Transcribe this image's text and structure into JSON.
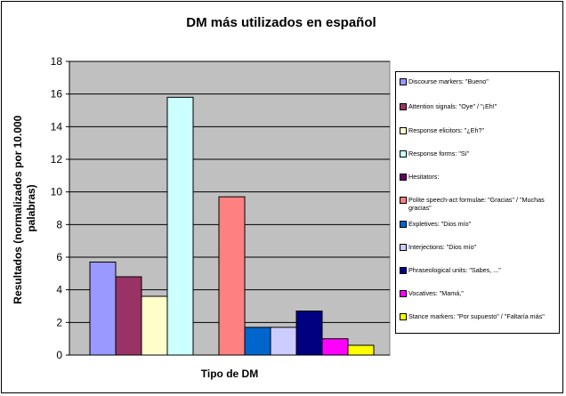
{
  "chart_data": {
    "type": "bar",
    "title": "DM más utilizados en español",
    "xlabel": "Tipo de DM",
    "ylabel": "Resultados (normalizados por 10.000 palabras)",
    "ylim": [
      0,
      18
    ],
    "yticks": [
      0,
      2,
      4,
      6,
      8,
      10,
      12,
      14,
      16,
      18
    ],
    "grid": true,
    "legend_position": "right",
    "categories": [
      ""
    ],
    "series": [
      {
        "name": "Discourse markers: \"Bueno\"",
        "values": [
          5.7
        ],
        "color": "#9999ff"
      },
      {
        "name": "Attention signals: \"Oye\" / \"¡Eh!\"",
        "values": [
          4.8
        ],
        "color": "#993366"
      },
      {
        "name": "Response elicitors: \"¿Eh?\"",
        "values": [
          3.6
        ],
        "color": "#ffffcc"
      },
      {
        "name": "Response forms: \"Sí\"",
        "values": [
          15.8
        ],
        "color": "#ccffff"
      },
      {
        "name": "Hesitators:",
        "values": [
          0
        ],
        "color": "#660066"
      },
      {
        "name": "Polite speech-act formulae: \"Gracias\" / \"Muchas gracias\"",
        "values": [
          9.7
        ],
        "color": "#ff8080"
      },
      {
        "name": "Expletives: \"Dios mío\"",
        "values": [
          1.7
        ],
        "color": "#0066cc"
      },
      {
        "name": "Interjections: \"Dios mío\"",
        "values": [
          1.7
        ],
        "color": "#ccccff"
      },
      {
        "name": "Phraseological units: \"Sabes, ...\"",
        "values": [
          2.7
        ],
        "color": "#000080"
      },
      {
        "name": "Vocatives: \"Mamá,\"",
        "values": [
          1.0
        ],
        "color": "#ff00ff"
      },
      {
        "name": "Stance markers: \"Por supuesto\" / \"Faltaría más\"",
        "values": [
          0.6
        ],
        "color": "#ffff00"
      }
    ]
  }
}
